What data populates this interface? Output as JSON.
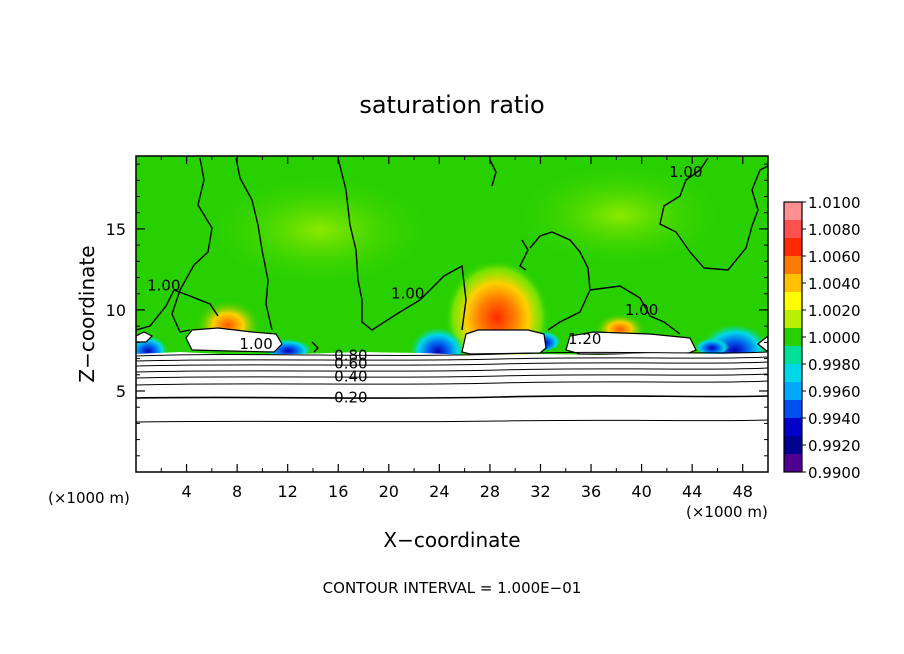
{
  "chart_data": {
    "type": "heatmap",
    "title": "saturation ratio",
    "xlabel": "X−coordinate",
    "ylabel": "Z−coordinate",
    "x_unit_label": "(×1000 m)",
    "y_unit_label": "(×1000 m)",
    "footer": "CONTOUR INTERVAL = 1.000E−01",
    "xlim": [
      0,
      50
    ],
    "ylim": [
      0,
      19.5
    ],
    "x_ticks": [
      4,
      8,
      12,
      16,
      20,
      24,
      28,
      32,
      36,
      40,
      44,
      48
    ],
    "y_ticks": [
      5,
      10,
      15
    ],
    "colorbar": {
      "min": 0.99,
      "max": 1.01,
      "labels": [
        "1.0100",
        "1.0080",
        "1.0060",
        "1.0040",
        "1.0020",
        "1.0000",
        "0.9980",
        "0.9960",
        "0.9940",
        "0.9920",
        "0.9900"
      ],
      "colors": [
        "#ff9090",
        "#ff5050",
        "#ff2a00",
        "#ff7a00",
        "#ffc000",
        "#ffff00",
        "#b8f000",
        "#28d000",
        "#00e098",
        "#00d8e8",
        "#00a8ff",
        "#0050f0",
        "#0000c8",
        "#000090",
        "#500090"
      ]
    },
    "contour_labels": [
      {
        "text": "1.00",
        "x": 2.2,
        "z": 11.5
      },
      {
        "text": "1.00",
        "x": 9.5,
        "z": 7.9
      },
      {
        "text": "1.00",
        "x": 21.5,
        "z": 11.0
      },
      {
        "text": "1.00",
        "x": 43.5,
        "z": 18.5
      },
      {
        "text": "1.00",
        "x": 40.0,
        "z": 10.0
      },
      {
        "text": "1.20",
        "x": 35.5,
        "z": 8.2
      },
      {
        "text": "0.80",
        "x": 17.0,
        "z": 7.2
      },
      {
        "text": "0.60",
        "x": 17.0,
        "z": 6.7
      },
      {
        "text": "0.40",
        "x": 17.0,
        "z": 5.9
      },
      {
        "text": "0.20",
        "x": 17.0,
        "z": 4.6
      }
    ]
  }
}
